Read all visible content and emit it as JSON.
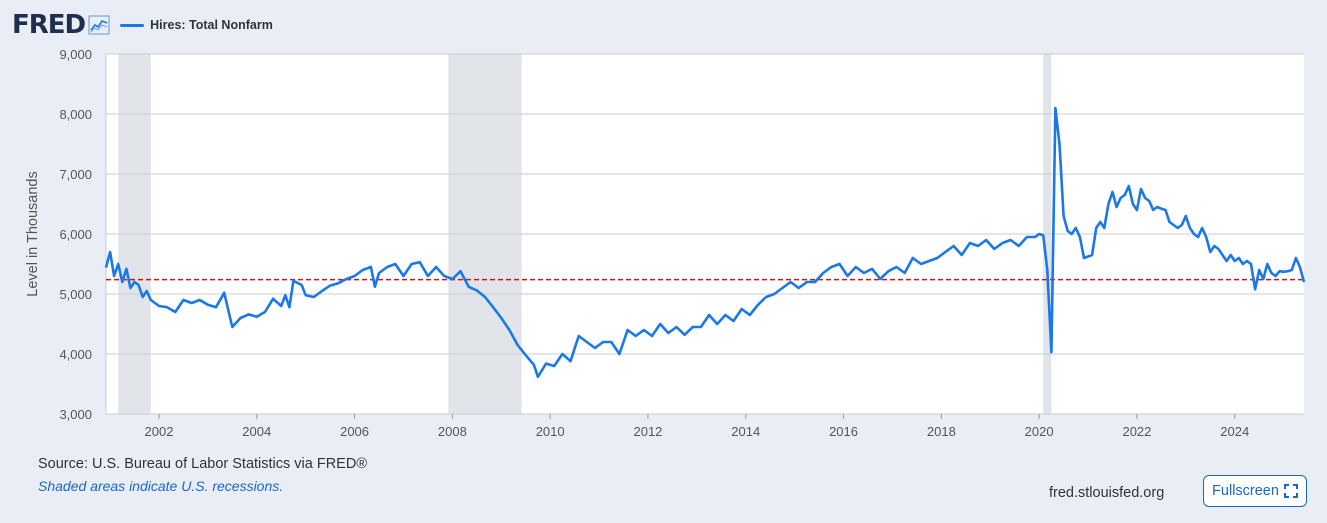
{
  "header": {
    "logo_text": "FRED",
    "logo_icon": "chart-line-icon",
    "legend_label": "Hires: Total Nonfarm"
  },
  "footer": {
    "source": "Source: U.S. Bureau of Labor Statistics via FRED®",
    "note": "Shaded areas indicate U.S. recessions.",
    "site": "fred.stlouisfed.org",
    "fullscreen_label": "Fullscreen",
    "fullscreen_icon": "expand-icon"
  },
  "colors": {
    "line": "#1a78e8",
    "recession": "#e1e5ea",
    "reference_line": "#b22222",
    "grid": "#cccccc",
    "frame_bg": "#e9eef6"
  },
  "chart_data": {
    "type": "line",
    "title": "",
    "xlabel": "",
    "ylabel": "Level in Thousands",
    "xlim": [
      "2000-12",
      "2025-06"
    ],
    "ylim": [
      3000,
      9000
    ],
    "y_ticks": [
      3000,
      4000,
      5000,
      6000,
      7000,
      8000,
      9000
    ],
    "y_tick_labels": [
      "3,000",
      "4,000",
      "5,000",
      "6,000",
      "7,000",
      "8,000",
      "9,000"
    ],
    "x_tick_labels": [
      "2002",
      "2004",
      "2006",
      "2008",
      "2010",
      "2012",
      "2014",
      "2016",
      "2018",
      "2020",
      "2022",
      "2024"
    ],
    "grid": "horizontal",
    "reference_line": {
      "y": 5240,
      "style": "dashed"
    },
    "recessions": [
      {
        "start": "2001-03",
        "end": "2001-11"
      },
      {
        "start": "2007-12",
        "end": "2009-06"
      },
      {
        "start": "2020-02",
        "end": "2020-04"
      }
    ],
    "series": [
      {
        "name": "Hires: Total Nonfarm",
        "points": [
          [
            "2000-12",
            5440
          ],
          [
            "2001-01",
            5700
          ],
          [
            "2001-02",
            5300
          ],
          [
            "2001-03",
            5500
          ],
          [
            "2001-04",
            5200
          ],
          [
            "2001-05",
            5420
          ],
          [
            "2001-06",
            5100
          ],
          [
            "2001-07",
            5200
          ],
          [
            "2001-08",
            5150
          ],
          [
            "2001-09",
            4950
          ],
          [
            "2001-10",
            5050
          ],
          [
            "2001-11",
            4900
          ],
          [
            "2002-01",
            4800
          ],
          [
            "2002-03",
            4780
          ],
          [
            "2002-05",
            4700
          ],
          [
            "2002-07",
            4900
          ],
          [
            "2002-09",
            4850
          ],
          [
            "2002-11",
            4900
          ],
          [
            "2003-01",
            4820
          ],
          [
            "2003-03",
            4780
          ],
          [
            "2003-05",
            5020
          ],
          [
            "2003-07",
            4450
          ],
          [
            "2003-09",
            4600
          ],
          [
            "2003-11",
            4660
          ],
          [
            "2004-01",
            4620
          ],
          [
            "2004-03",
            4700
          ],
          [
            "2004-05",
            4920
          ],
          [
            "2004-07",
            4800
          ],
          [
            "2004-08",
            4980
          ],
          [
            "2004-09",
            4780
          ],
          [
            "2004-10",
            5220
          ],
          [
            "2004-12",
            5150
          ],
          [
            "2005-01",
            4980
          ],
          [
            "2005-03",
            4950
          ],
          [
            "2005-05",
            5050
          ],
          [
            "2005-07",
            5140
          ],
          [
            "2005-09",
            5180
          ],
          [
            "2005-11",
            5250
          ],
          [
            "2006-01",
            5300
          ],
          [
            "2006-03",
            5400
          ],
          [
            "2006-05",
            5450
          ],
          [
            "2006-06",
            5120
          ],
          [
            "2006-07",
            5350
          ],
          [
            "2006-09",
            5450
          ],
          [
            "2006-11",
            5500
          ],
          [
            "2007-01",
            5300
          ],
          [
            "2007-03",
            5500
          ],
          [
            "2007-05",
            5530
          ],
          [
            "2007-07",
            5300
          ],
          [
            "2007-09",
            5450
          ],
          [
            "2007-11",
            5300
          ],
          [
            "2008-01",
            5250
          ],
          [
            "2008-03",
            5380
          ],
          [
            "2008-05",
            5120
          ],
          [
            "2008-07",
            5060
          ],
          [
            "2008-09",
            4950
          ],
          [
            "2008-11",
            4780
          ],
          [
            "2009-01",
            4600
          ],
          [
            "2009-03",
            4400
          ],
          [
            "2009-05",
            4150
          ],
          [
            "2009-07",
            3980
          ],
          [
            "2009-09",
            3820
          ],
          [
            "2009-10",
            3620
          ],
          [
            "2009-12",
            3840
          ],
          [
            "2010-02",
            3800
          ],
          [
            "2010-04",
            4000
          ],
          [
            "2010-06",
            3880
          ],
          [
            "2010-08",
            4300
          ],
          [
            "2010-10",
            4200
          ],
          [
            "2010-12",
            4100
          ],
          [
            "2011-02",
            4200
          ],
          [
            "2011-04",
            4200
          ],
          [
            "2011-06",
            4000
          ],
          [
            "2011-08",
            4400
          ],
          [
            "2011-10",
            4300
          ],
          [
            "2011-12",
            4400
          ],
          [
            "2012-02",
            4300
          ],
          [
            "2012-04",
            4500
          ],
          [
            "2012-06",
            4350
          ],
          [
            "2012-08",
            4450
          ],
          [
            "2012-10",
            4320
          ],
          [
            "2012-12",
            4450
          ],
          [
            "2013-02",
            4450
          ],
          [
            "2013-04",
            4650
          ],
          [
            "2013-06",
            4500
          ],
          [
            "2013-08",
            4650
          ],
          [
            "2013-10",
            4550
          ],
          [
            "2013-12",
            4750
          ],
          [
            "2014-02",
            4650
          ],
          [
            "2014-04",
            4820
          ],
          [
            "2014-06",
            4950
          ],
          [
            "2014-08",
            5000
          ],
          [
            "2014-10",
            5100
          ],
          [
            "2014-12",
            5200
          ],
          [
            "2015-02",
            5100
          ],
          [
            "2015-04",
            5200
          ],
          [
            "2015-06",
            5200
          ],
          [
            "2015-08",
            5350
          ],
          [
            "2015-10",
            5450
          ],
          [
            "2015-12",
            5500
          ],
          [
            "2016-02",
            5300
          ],
          [
            "2016-04",
            5450
          ],
          [
            "2016-06",
            5350
          ],
          [
            "2016-08",
            5420
          ],
          [
            "2016-10",
            5250
          ],
          [
            "2016-12",
            5380
          ],
          [
            "2017-02",
            5450
          ],
          [
            "2017-04",
            5350
          ],
          [
            "2017-06",
            5600
          ],
          [
            "2017-08",
            5500
          ],
          [
            "2017-10",
            5550
          ],
          [
            "2017-12",
            5600
          ],
          [
            "2018-02",
            5700
          ],
          [
            "2018-04",
            5800
          ],
          [
            "2018-06",
            5650
          ],
          [
            "2018-08",
            5850
          ],
          [
            "2018-10",
            5800
          ],
          [
            "2018-12",
            5900
          ],
          [
            "2019-02",
            5750
          ],
          [
            "2019-04",
            5850
          ],
          [
            "2019-06",
            5900
          ],
          [
            "2019-08",
            5800
          ],
          [
            "2019-10",
            5950
          ],
          [
            "2019-12",
            5950
          ],
          [
            "2020-01",
            6000
          ],
          [
            "2020-02",
            5980
          ],
          [
            "2020-03",
            5400
          ],
          [
            "2020-04",
            4030
          ],
          [
            "2020-05",
            8100
          ],
          [
            "2020-06",
            7500
          ],
          [
            "2020-07",
            6300
          ],
          [
            "2020-08",
            6050
          ],
          [
            "2020-09",
            6000
          ],
          [
            "2020-10",
            6100
          ],
          [
            "2020-11",
            5950
          ],
          [
            "2020-12",
            5600
          ],
          [
            "2021-02",
            5650
          ],
          [
            "2021-03",
            6100
          ],
          [
            "2021-04",
            6200
          ],
          [
            "2021-05",
            6100
          ],
          [
            "2021-06",
            6500
          ],
          [
            "2021-07",
            6700
          ],
          [
            "2021-08",
            6450
          ],
          [
            "2021-09",
            6600
          ],
          [
            "2021-10",
            6650
          ],
          [
            "2021-11",
            6800
          ],
          [
            "2021-12",
            6500
          ],
          [
            "2022-01",
            6400
          ],
          [
            "2022-02",
            6750
          ],
          [
            "2022-03",
            6600
          ],
          [
            "2022-04",
            6550
          ],
          [
            "2022-05",
            6400
          ],
          [
            "2022-06",
            6450
          ],
          [
            "2022-07",
            6420
          ],
          [
            "2022-08",
            6400
          ],
          [
            "2022-09",
            6200
          ],
          [
            "2022-10",
            6150
          ],
          [
            "2022-11",
            6100
          ],
          [
            "2022-12",
            6150
          ],
          [
            "2023-01",
            6300
          ],
          [
            "2023-02",
            6100
          ],
          [
            "2023-03",
            6000
          ],
          [
            "2023-04",
            5950
          ],
          [
            "2023-05",
            6100
          ],
          [
            "2023-06",
            5950
          ],
          [
            "2023-07",
            5700
          ],
          [
            "2023-08",
            5800
          ],
          [
            "2023-09",
            5750
          ],
          [
            "2023-10",
            5650
          ],
          [
            "2023-11",
            5550
          ],
          [
            "2023-12",
            5650
          ],
          [
            "2024-01",
            5550
          ],
          [
            "2024-02",
            5600
          ],
          [
            "2024-03",
            5500
          ],
          [
            "2024-04",
            5550
          ],
          [
            "2024-05",
            5500
          ],
          [
            "2024-06",
            5080
          ],
          [
            "2024-07",
            5400
          ],
          [
            "2024-08",
            5250
          ],
          [
            "2024-09",
            5500
          ],
          [
            "2024-10",
            5350
          ],
          [
            "2024-11",
            5300
          ],
          [
            "2024-12",
            5380
          ],
          [
            "2025-01",
            5370
          ],
          [
            "2025-02",
            5380
          ],
          [
            "2025-03",
            5400
          ],
          [
            "2025-04",
            5600
          ],
          [
            "2025-05",
            5450
          ],
          [
            "2025-06",
            5200
          ]
        ]
      }
    ]
  }
}
